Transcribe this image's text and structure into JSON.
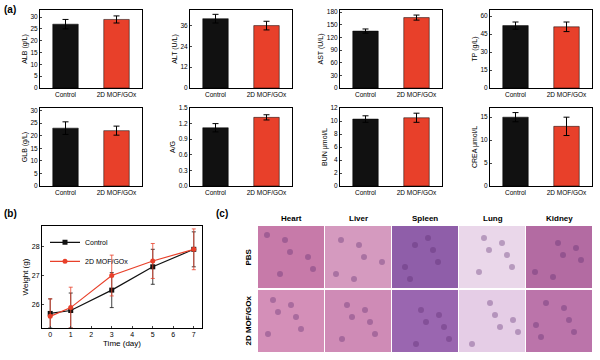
{
  "chart_data": [
    {
      "type": "bar",
      "ylabel": "ALB (g/L)",
      "categories": [
        "Control",
        "2D MOF/GOx"
      ],
      "values": [
        27,
        29
      ],
      "errors": [
        2,
        1.5
      ],
      "colors": [
        "#111111",
        "#e8402a"
      ],
      "ylim": [
        0,
        33
      ],
      "yticks": [
        0,
        5,
        10,
        15,
        20,
        25,
        30
      ],
      "grid": false
    },
    {
      "type": "bar",
      "ylabel": "ALT (U/L)",
      "categories": [
        "Control",
        "2D MOF/GOx"
      ],
      "values": [
        40,
        36
      ],
      "errors": [
        2.5,
        2.5
      ],
      "colors": [
        "#111111",
        "#e8402a"
      ],
      "ylim": [
        0,
        45
      ],
      "yticks": [
        0,
        12,
        24,
        36
      ],
      "grid": false
    },
    {
      "type": "bar",
      "ylabel": "AST (U/L)",
      "categories": [
        "Control",
        "2D MOF/GOx"
      ],
      "values": [
        135,
        167
      ],
      "errors": [
        5,
        6
      ],
      "colors": [
        "#111111",
        "#e8402a"
      ],
      "ylim": [
        0,
        185
      ],
      "yticks": [
        0,
        30,
        60,
        90,
        120,
        150,
        180
      ],
      "grid": false
    },
    {
      "type": "bar",
      "ylabel": "TP (g/L)",
      "categories": [
        "Control",
        "2D MOF/GOx"
      ],
      "values": [
        52,
        51
      ],
      "errors": [
        3,
        4
      ],
      "colors": [
        "#111111",
        "#e8402a"
      ],
      "ylim": [
        0,
        65
      ],
      "yticks": [
        0,
        15,
        30,
        45,
        60
      ],
      "grid": false
    },
    {
      "type": "bar",
      "ylabel": "GLB (g/L)",
      "categories": [
        "Control",
        "2D MOF/GOx"
      ],
      "values": [
        23,
        22
      ],
      "errors": [
        2.5,
        1.8
      ],
      "colors": [
        "#111111",
        "#e8402a"
      ],
      "ylim": [
        0,
        31
      ],
      "yticks": [
        0,
        5,
        10,
        15,
        20,
        25,
        30
      ],
      "grid": false
    },
    {
      "type": "bar",
      "ylabel": "A/G",
      "categories": [
        "Control",
        "2D MOF/GOx"
      ],
      "values": [
        1.12,
        1.32
      ],
      "errors": [
        0.08,
        0.05
      ],
      "colors": [
        "#111111",
        "#e8402a"
      ],
      "ylim": [
        0,
        1.5
      ],
      "yticks": [
        {
          "value": 0,
          "label": "0.0"
        },
        0.3,
        0.6,
        0.9,
        1.2,
        1.5
      ],
      "grid": false
    },
    {
      "type": "bar",
      "ylabel": "BUN μmol/L",
      "categories": [
        "Control",
        "2D MOF/GOx"
      ],
      "values": [
        10.3,
        10.5
      ],
      "errors": [
        0.5,
        0.7
      ],
      "colors": [
        "#111111",
        "#e8402a"
      ],
      "ylim": [
        0,
        12
      ],
      "yticks": [
        0,
        2,
        4,
        6,
        8,
        10,
        12
      ],
      "grid": false
    },
    {
      "type": "bar",
      "ylabel": "CREA μmol/L",
      "categories": [
        "Control",
        "2D MOF/GOx"
      ],
      "values": [
        15,
        13
      ],
      "errors": [
        1,
        2
      ],
      "colors": [
        "#111111",
        "#e8402a"
      ],
      "ylim": [
        0,
        17
      ],
      "yticks": [
        0,
        5,
        10,
        15
      ],
      "grid": false
    },
    {
      "type": "line",
      "xlabel": "Time (day)",
      "ylabel": "Weight (g)",
      "x": [
        0,
        1,
        3,
        5,
        7
      ],
      "series": [
        {
          "name": "Control",
          "color": "#111111",
          "marker": "square",
          "values": [
            25.7,
            25.8,
            26.5,
            27.3,
            27.9
          ],
          "errors": [
            0.5,
            0.6,
            0.6,
            0.6,
            0.6
          ]
        },
        {
          "name": "2D MOF/GOx",
          "color": "#e8402a",
          "marker": "circle",
          "values": [
            25.6,
            25.9,
            27.0,
            27.5,
            27.9
          ],
          "errors": [
            0.6,
            0.7,
            0.7,
            0.6,
            0.7
          ]
        }
      ],
      "xlim": [
        -0.4,
        7.4
      ],
      "xticks": [
        0,
        1,
        2,
        3,
        4,
        5,
        6,
        7
      ],
      "ylim": [
        25.2,
        28.7
      ],
      "yticks": [
        26,
        27,
        28
      ],
      "legend": "upper left",
      "grid": false
    }
  ],
  "panel_labels": [
    "(a)",
    "(b)",
    "(c)"
  ],
  "image_panel": {
    "columns": [
      "Heart",
      "Liver",
      "Spleen",
      "Lung",
      "Kidney"
    ],
    "rows": [
      "PBS",
      "2D MOF/GOx"
    ]
  }
}
